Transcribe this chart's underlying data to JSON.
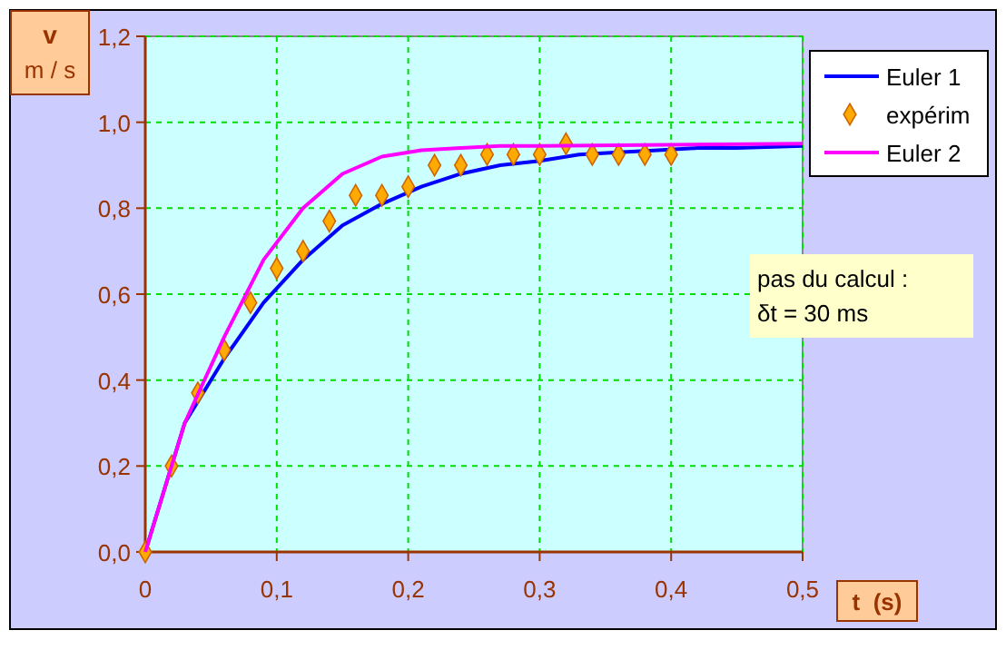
{
  "chart_data": {
    "type": "line",
    "xlabel": "t  (s)",
    "ylabel": "v\nm / s",
    "xlim": [
      0,
      0.5
    ],
    "ylim": [
      0,
      1.2
    ],
    "xticks": [
      0,
      {
        "value": 0.1,
        "label": "0,1"
      },
      {
        "value": 0.2,
        "label": "0,2"
      },
      {
        "value": 0.3,
        "label": "0,3"
      },
      {
        "value": 0.4,
        "label": "0,4"
      },
      {
        "value": 0.5,
        "label": "0,5"
      }
    ],
    "yticks": [
      {
        "value": 0,
        "label": "0,0"
      },
      {
        "value": 0.2,
        "label": "0,2"
      },
      {
        "value": 0.4,
        "label": "0,4"
      },
      {
        "value": 0.6,
        "label": "0,6"
      },
      {
        "value": 0.8,
        "label": "0,8"
      },
      {
        "value": 1,
        "label": "1,0"
      },
      {
        "value": 1.2,
        "label": "1,2"
      }
    ],
    "grid": true,
    "legend": "top right",
    "series": [
      {
        "name": "Euler 1",
        "color": "#0000ff",
        "x": [
          0,
          0.03,
          0.06,
          0.09,
          0.12,
          0.15,
          0.18,
          0.21,
          0.24,
          0.27,
          0.3,
          0.33,
          0.36,
          0.39,
          0.42,
          0.45,
          0.5
        ],
        "values": [
          0,
          0.3,
          0.45,
          0.58,
          0.68,
          0.76,
          0.81,
          0.85,
          0.88,
          0.9,
          0.91,
          0.925,
          0.93,
          0.935,
          0.94,
          0.94,
          0.945
        ]
      },
      {
        "name": "expérim",
        "type": "scatter",
        "marker": "diamond",
        "color": "#ffaa00",
        "x": [
          0,
          0.02,
          0.04,
          0.06,
          0.08,
          0.1,
          0.12,
          0.14,
          0.16,
          0.18,
          0.2,
          0.22,
          0.24,
          0.26,
          0.28,
          0.3,
          0.32,
          0.34,
          0.36,
          0.38,
          0.4
        ],
        "values": [
          0,
          0.2,
          0.37,
          0.47,
          0.58,
          0.66,
          0.7,
          0.77,
          0.83,
          0.83,
          0.85,
          0.9,
          0.9,
          0.925,
          0.925,
          0.925,
          0.95,
          0.925,
          0.925,
          0.925,
          0.925
        ]
      },
      {
        "name": "Euler 2",
        "color": "#ff00ff",
        "x": [
          0,
          0.03,
          0.06,
          0.09,
          0.12,
          0.15,
          0.18,
          0.21,
          0.24,
          0.27,
          0.3,
          0.5
        ],
        "values": [
          0,
          0.3,
          0.5,
          0.68,
          0.8,
          0.88,
          0.92,
          0.935,
          0.94,
          0.945,
          0.945,
          0.95
        ]
      }
    ],
    "annotations": [
      "pas du calcul :\nδt = 30 ms"
    ]
  }
}
